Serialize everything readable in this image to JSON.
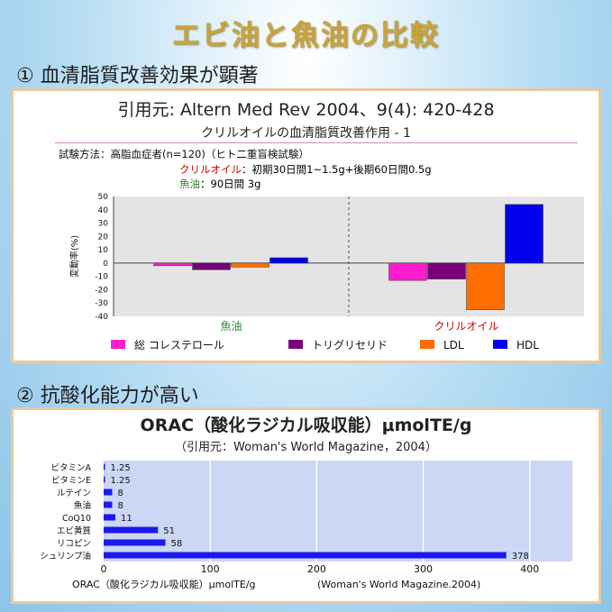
{
  "page_title": "エビ油と魚油の比較",
  "section1": {
    "heading": "① 血清脂質改善効果が顕著",
    "reference": "引用元: Altern Med Rev 2004、9(4): 420-428",
    "subtitle": "クリルオイルの血清脂質改善作用 - 1",
    "method": "試験方法：高脂血症者(n=120)（ヒト二重盲検試験）",
    "krill_label": "クリルオイル",
    "krill_dose": "：初期30日間1~1.5g+後期60日間0.5g",
    "fish_label": "魚油",
    "fish_dose": "：90日間 3g"
  },
  "section2": {
    "heading": "② 抗酸化能力が高い",
    "title": "ORAC（酸化ラジカル吸収能）μmolTE/g",
    "reference": "（引用元：Woman's World Magazine，2004）",
    "footer_left": "ORAC（酸化ラジカル吸収能）μmolTE/g",
    "footer_right": "(Woman's World Magazine.2004)"
  },
  "chart_data": [
    {
      "type": "bar",
      "ylabel": "変動率(%)",
      "ylim": [
        -40,
        50
      ],
      "yticks": [
        50,
        40,
        30,
        20,
        10,
        0,
        -10,
        -20,
        -30,
        -40
      ],
      "categories": [
        "魚油",
        "クリルオイル"
      ],
      "series": [
        {
          "name": "総 コレステロール",
          "color": "#ff1ccd",
          "values": [
            -2,
            -13
          ]
        },
        {
          "name": "トリグリセリド",
          "color": "#7a007a",
          "values": [
            -5,
            -12
          ]
        },
        {
          "name": "LDL",
          "color": "#ff6f00",
          "values": [
            -3,
            -35
          ]
        },
        {
          "name": "HDL",
          "color": "#0000ee",
          "values": [
            4,
            44
          ]
        }
      ],
      "grid": false,
      "legend": "bottom"
    },
    {
      "type": "bar",
      "orientation": "horizontal",
      "categories": [
        "ビタミンA",
        "ビタミンE",
        "ルテイン",
        "魚油",
        "CoQ10",
        "エビ黄質",
        "リコピン",
        "シュリンプ油"
      ],
      "values": [
        1.25,
        1.25,
        8,
        8,
        11,
        51,
        58,
        378
      ],
      "value_labels": [
        "1.25",
        "1.25",
        "8",
        "8",
        "11",
        "51",
        "58",
        "378"
      ],
      "xticks": [
        0,
        100,
        200,
        300,
        400
      ],
      "xlim": [
        0,
        440
      ],
      "grid": true,
      "color": "#1a1aee"
    }
  ]
}
